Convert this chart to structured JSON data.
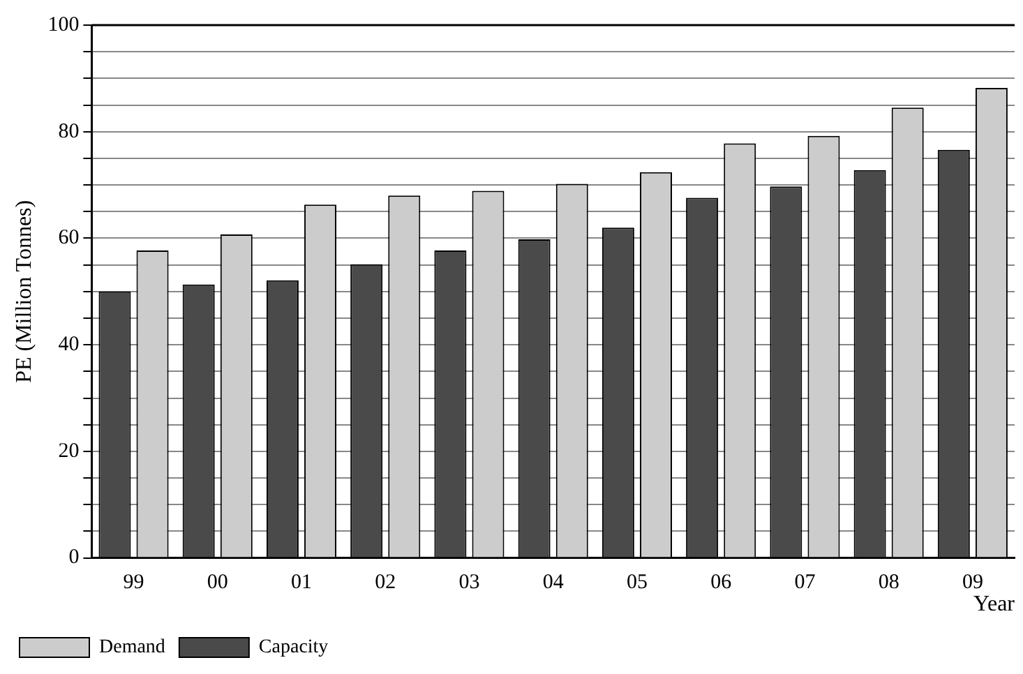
{
  "chart_data": {
    "type": "bar",
    "xlabel": "Year",
    "ylabel": "PE (Million Tonnes)",
    "categories": [
      "99",
      "00",
      "01",
      "02",
      "03",
      "04",
      "05",
      "06",
      "07",
      "08",
      "09"
    ],
    "series": [
      {
        "name": "Capacity",
        "color": "#4a4a4a",
        "values": [
          50.0,
          51.3,
          52.1,
          55.1,
          57.7,
          59.8,
          62.0,
          67.6,
          69.7,
          72.8,
          76.6
        ]
      },
      {
        "name": "Demand",
        "color": "#cccccc",
        "values": [
          57.7,
          60.7,
          66.3,
          68.0,
          68.9,
          70.2,
          72.4,
          77.8,
          79.2,
          84.5,
          88.2
        ]
      }
    ],
    "ylim": [
      0,
      100
    ],
    "yticks": [
      0,
      {
        "value": 5,
        "label": null
      },
      {
        "value": 10,
        "label": null
      },
      {
        "value": 15,
        "label": null
      },
      20,
      {
        "value": 25,
        "label": null
      },
      {
        "value": 30,
        "label": null
      },
      {
        "value": 35,
        "label": null
      },
      40,
      {
        "value": 45,
        "label": null
      },
      {
        "value": 50,
        "label": null
      },
      {
        "value": 55,
        "label": null
      },
      60,
      {
        "value": 65,
        "label": null
      },
      {
        "value": 70,
        "label": null
      },
      {
        "value": 75,
        "label": null
      },
      80,
      {
        "value": 85,
        "label": null
      },
      {
        "value": 90,
        "label": null
      },
      {
        "value": 95,
        "label": null
      },
      100
    ],
    "grid": "y",
    "legend": "bottom left"
  }
}
